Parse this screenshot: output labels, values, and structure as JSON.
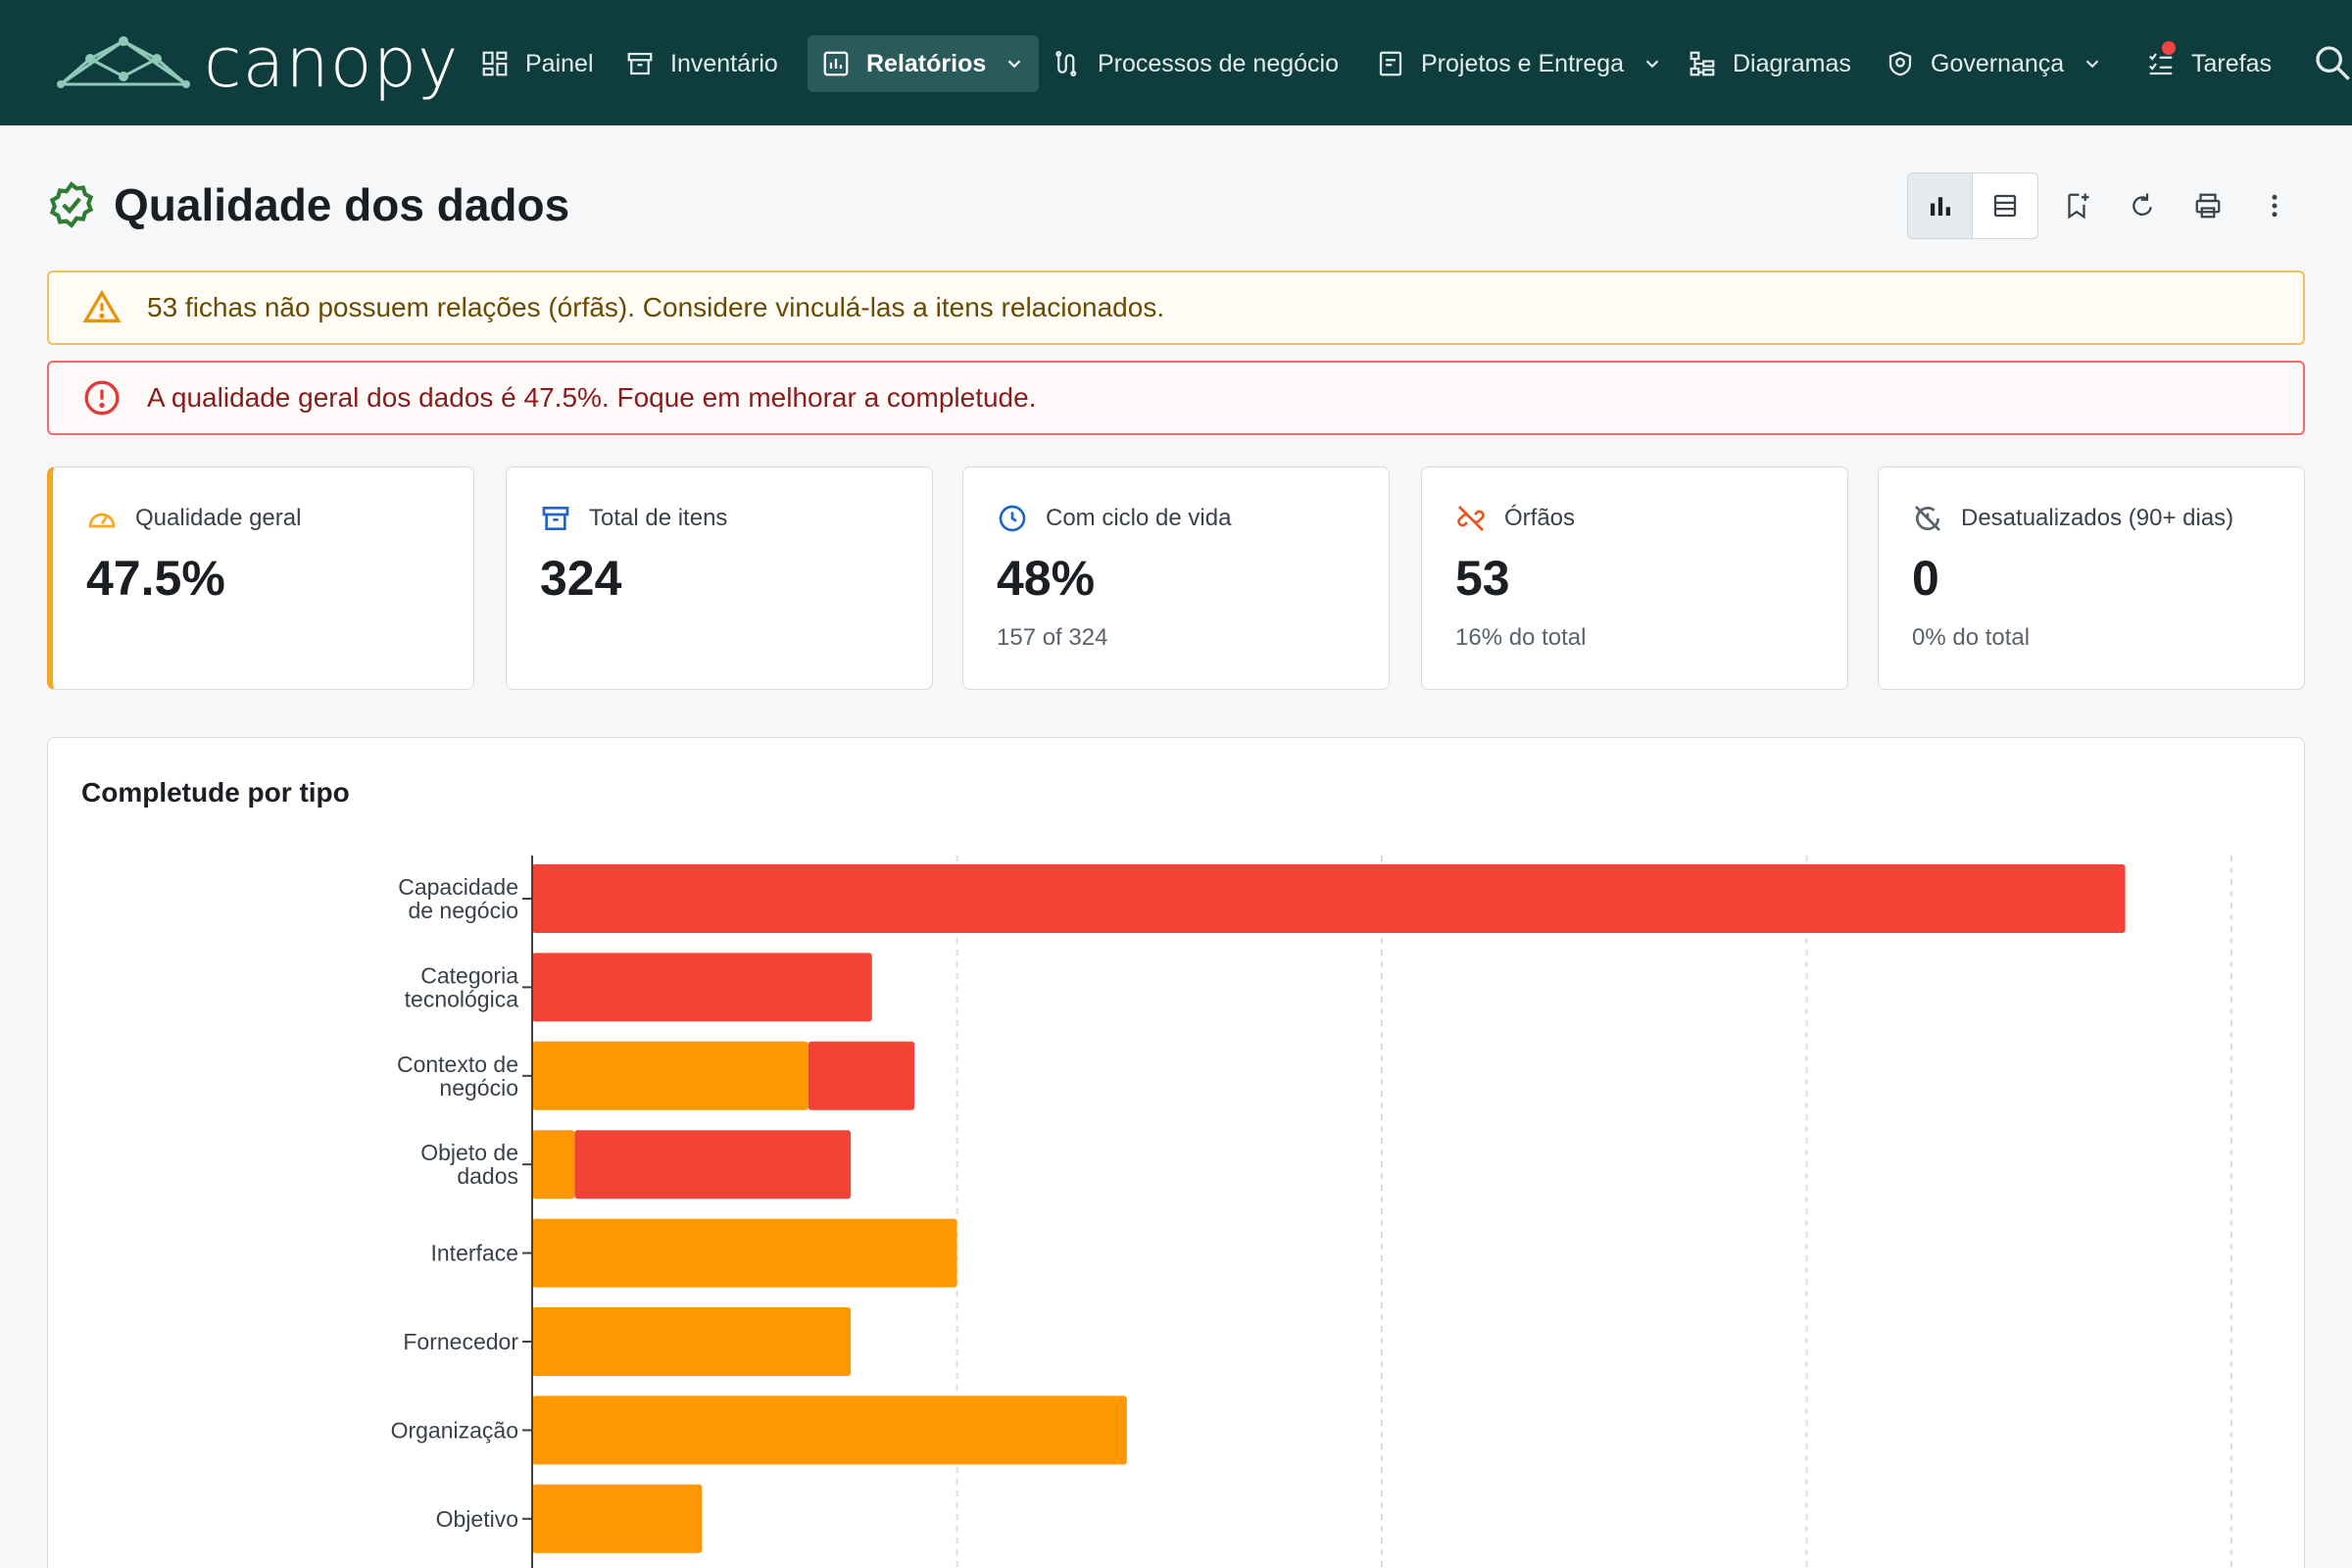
{
  "app": {
    "name": "canopy"
  },
  "nav": {
    "items": [
      {
        "label": "Painel",
        "icon": "dashboard-icon"
      },
      {
        "label": "Inventário",
        "icon": "archive-icon"
      },
      {
        "label": "Relatórios",
        "icon": "report-icon",
        "active": true,
        "dropdown": true
      },
      {
        "label": "Processos de negócio",
        "icon": "process-icon"
      },
      {
        "label": "Projetos e Entrega",
        "icon": "project-icon",
        "dropdown": true
      },
      {
        "label": "Diagramas",
        "icon": "diagram-icon"
      },
      {
        "label": "Governança",
        "icon": "shield-icon",
        "dropdown": true
      },
      {
        "label": "Tarefas",
        "icon": "tasks-icon",
        "notification": true
      }
    ]
  },
  "page": {
    "title": "Qualidade dos dados"
  },
  "alerts": {
    "warning": "53 fichas não possuem relações (órfãs). Considere vinculá-las a itens relacionados.",
    "error": "A qualidade geral dos dados é 47.5%. Foque em melhorar a completude."
  },
  "kpis": [
    {
      "label": "Qualidade geral",
      "value": "47.5%",
      "sub": "",
      "icon": "gauge-icon"
    },
    {
      "label": "Total de itens",
      "value": "324",
      "sub": "",
      "icon": "archive-icon"
    },
    {
      "label": "Com ciclo de vida",
      "value": "48%",
      "sub": "157 of 324",
      "icon": "clock-icon"
    },
    {
      "label": "Órfãos",
      "value": "53",
      "sub": "16% do total",
      "icon": "unlink-icon"
    },
    {
      "label": "Desatualizados (90+ dias)",
      "value": "0",
      "sub": "0% do total",
      "icon": "stale-icon"
    }
  ],
  "colors": {
    "nav_bg": "#0f3d3e",
    "orange": "#ff9800",
    "red": "#f44336",
    "accent_green": "#2e7d32"
  },
  "chart_data": {
    "type": "bar",
    "orientation": "horizontal",
    "stacked": true,
    "title": "Completude por tipo",
    "categories": [
      [
        "Capacidade",
        "de negócio"
      ],
      [
        "Categoria",
        "tecnológica"
      ],
      [
        "Contexto de",
        "negócio"
      ],
      [
        "Objeto de",
        "dados"
      ],
      [
        "Interface"
      ],
      [
        "Fornecedor"
      ],
      [
        "Organização"
      ],
      [
        "Objetivo"
      ]
    ],
    "series": [
      {
        "color": "#ff9800",
        "values": [
          0,
          0,
          13,
          2,
          20,
          15,
          28,
          8
        ]
      },
      {
        "color": "#f44336",
        "values": [
          75,
          16,
          5,
          13,
          0,
          0,
          0,
          0
        ]
      }
    ],
    "xlim": [
      0,
      80
    ],
    "x_grid_step": 20,
    "grid": true
  }
}
